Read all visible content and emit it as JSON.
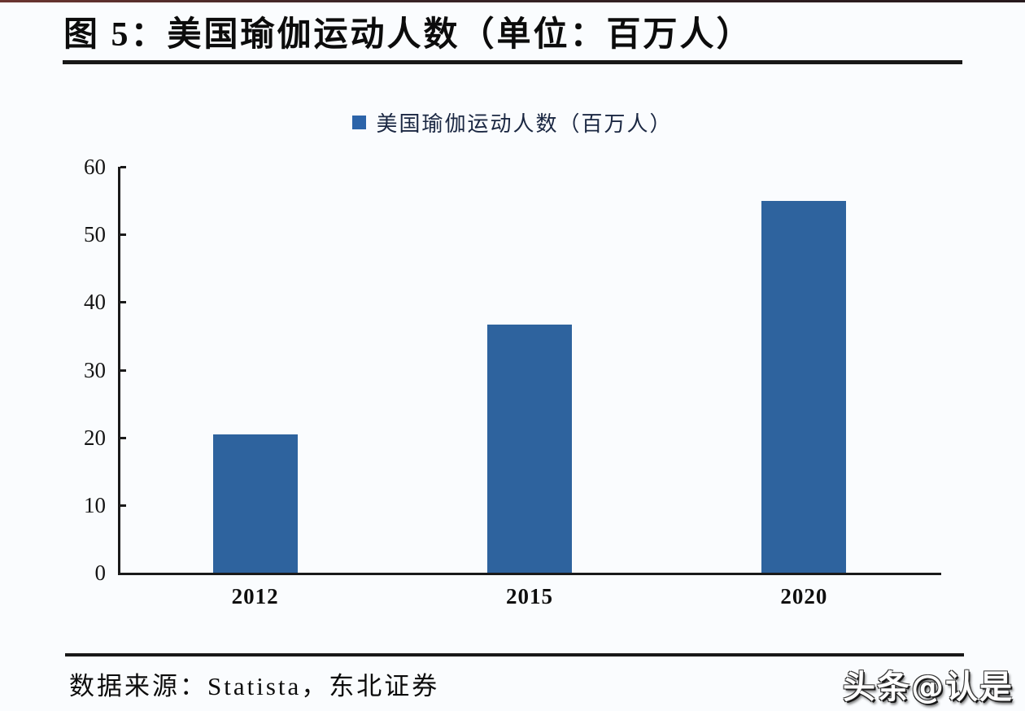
{
  "title": {
    "text": "图 5：美国瑜伽运动人数（单位：百万人）"
  },
  "legend": {
    "marker_color": "#2c64a9",
    "label": "美国瑜伽运动人数（百万人）"
  },
  "chart_data": {
    "type": "bar",
    "title": "美国瑜伽运动人数（单位：百万人）",
    "series_name": "美国瑜伽运动人数（百万人）",
    "categories": [
      "2012",
      "2015",
      "2020"
    ],
    "values": [
      20.4,
      36.7,
      55.0
    ],
    "xlabel": "",
    "ylabel": "",
    "ylim": [
      0,
      60
    ],
    "yticks": [
      0,
      10,
      20,
      30,
      40,
      50,
      60
    ],
    "grid": false,
    "legend_position": "top-center",
    "bar_color": "#2e639e",
    "axis_color": "#1a1a1a"
  },
  "footer": {
    "source": "数据来源：Statista，东北证券",
    "watermark": "头条@认是"
  }
}
